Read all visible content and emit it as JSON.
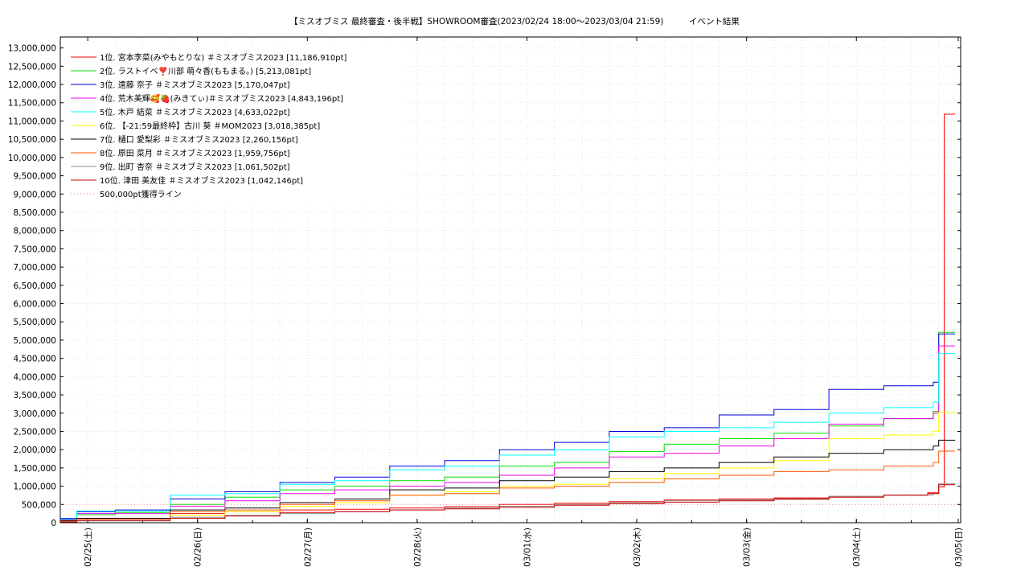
{
  "chart_data": {
    "type": "line",
    "title": "【ミスオブミス 最終審査・後半戦】SHOWROOM審査(2023/02/24 18:00～2023/03/04 21:59)　　　イベント結果",
    "xlabel": "",
    "ylabel": "",
    "ylim": [
      0,
      13300000
    ],
    "grid": true,
    "legend_position": "top-left",
    "x_ticks": [
      "02/25(土)",
      "02/26(日)",
      "02/27(月)",
      "02/28(火)",
      "03/01(水)",
      "03/02(木)",
      "03/03(金)",
      "03/04(土)",
      "03/05(日)"
    ],
    "y_ticks": [
      "0",
      "500,000",
      "1,000,000",
      "1,500,000",
      "2,000,000",
      "2,500,000",
      "3,000,000",
      "3,500,000",
      "4,000,000",
      "4,500,000",
      "5,000,000",
      "5,500,000",
      "6,000,000",
      "6,500,000",
      "7,000,000",
      "7,500,000",
      "8,000,000",
      "8,500,000",
      "9,000,000",
      "9,500,000",
      "10,000,000",
      "10,500,000",
      "11,000,000",
      "11,500,000",
      "12,000,000",
      "12,500,000",
      "13,000,000"
    ],
    "x_unit_note": "days since 02/24 18:00",
    "series": [
      {
        "name": "1位. 宮本李菜(みやもとりな) ＃ミスオブミス2023 [11,186,910pt]",
        "color": "#ff0000",
        "style": "solid",
        "points": [
          [
            0,
            0.06
          ],
          [
            0.15,
            0.12
          ],
          [
            1.0,
            0.25
          ],
          [
            1.5,
            0.3
          ],
          [
            2.0,
            0.35
          ],
          [
            2.5,
            0.37
          ],
          [
            3.0,
            0.4
          ],
          [
            3.5,
            0.44
          ],
          [
            4.0,
            0.5
          ],
          [
            4.5,
            0.53
          ],
          [
            5.0,
            0.58
          ],
          [
            5.5,
            0.62
          ],
          [
            6.0,
            0.65
          ],
          [
            6.5,
            0.68
          ],
          [
            7.0,
            0.72
          ],
          [
            7.5,
            0.76
          ],
          [
            7.9,
            0.82
          ],
          [
            8.0,
            0.98
          ],
          [
            8.05,
            11.18691
          ],
          [
            8.15,
            11.18691
          ]
        ]
      },
      {
        "name": "2位. ラストイベ❣️川部 萌々香(ももまる。) [5,213,081pt]",
        "color": "#00dd00",
        "style": "solid",
        "points": [
          [
            0,
            0.05
          ],
          [
            0.15,
            0.22
          ],
          [
            0.5,
            0.28
          ],
          [
            1.0,
            0.5
          ],
          [
            1.5,
            0.7
          ],
          [
            2.0,
            0.9
          ],
          [
            2.5,
            1.0
          ],
          [
            3.0,
            1.15
          ],
          [
            3.5,
            1.25
          ],
          [
            4.0,
            1.55
          ],
          [
            4.5,
            1.65
          ],
          [
            5.0,
            1.95
          ],
          [
            5.5,
            2.15
          ],
          [
            6.0,
            2.3
          ],
          [
            6.5,
            2.45
          ],
          [
            7.0,
            2.65
          ],
          [
            7.5,
            2.85
          ],
          [
            7.95,
            3.05
          ],
          [
            8.0,
            5.213081
          ],
          [
            8.15,
            5.213081
          ]
        ]
      },
      {
        "name": "3位. 遠藤 奈子 ＃ミスオブミス2023 [5,170,047pt]",
        "color": "#0000dd",
        "style": "solid",
        "points": [
          [
            0,
            0.12
          ],
          [
            0.15,
            0.3
          ],
          [
            0.5,
            0.35
          ],
          [
            1.0,
            0.65
          ],
          [
            1.5,
            0.85
          ],
          [
            2.0,
            1.1
          ],
          [
            2.5,
            1.25
          ],
          [
            3.0,
            1.55
          ],
          [
            3.5,
            1.7
          ],
          [
            4.0,
            2.0
          ],
          [
            4.5,
            2.2
          ],
          [
            5.0,
            2.5
          ],
          [
            5.5,
            2.6
          ],
          [
            6.0,
            2.95
          ],
          [
            6.5,
            3.1
          ],
          [
            7.0,
            3.65
          ],
          [
            7.5,
            3.75
          ],
          [
            7.95,
            3.85
          ],
          [
            8.0,
            5.170047
          ],
          [
            8.15,
            5.170047
          ]
        ]
      },
      {
        "name": "4位. 荒木美輝🥰🍓(みきてぃ)＃ミスオブミス2023 [4,843,196pt]",
        "color": "#ee00ee",
        "style": "solid",
        "points": [
          [
            0,
            0.08
          ],
          [
            0.15,
            0.25
          ],
          [
            1.0,
            0.45
          ],
          [
            1.5,
            0.6
          ],
          [
            2.0,
            0.8
          ],
          [
            2.5,
            0.9
          ],
          [
            3.0,
            1.0
          ],
          [
            3.5,
            1.1
          ],
          [
            4.0,
            1.3
          ],
          [
            4.5,
            1.5
          ],
          [
            5.0,
            1.8
          ],
          [
            5.5,
            1.9
          ],
          [
            6.0,
            2.1
          ],
          [
            6.5,
            2.3
          ],
          [
            7.0,
            2.7
          ],
          [
            7.5,
            2.85
          ],
          [
            7.95,
            3.0
          ],
          [
            8.0,
            4.843196
          ],
          [
            8.15,
            4.843196
          ]
        ]
      },
      {
        "name": "5位. 木戸 結菜 ＃ミスオブミス2023 [4,633,022pt]",
        "color": "#00ffff",
        "style": "solid",
        "points": [
          [
            0,
            0.1
          ],
          [
            0.15,
            0.32
          ],
          [
            1.0,
            0.75
          ],
          [
            1.5,
            0.8
          ],
          [
            2.0,
            1.05
          ],
          [
            2.5,
            1.15
          ],
          [
            3.0,
            1.45
          ],
          [
            3.5,
            1.55
          ],
          [
            4.0,
            1.85
          ],
          [
            4.5,
            2.0
          ],
          [
            5.0,
            2.35
          ],
          [
            5.5,
            2.5
          ],
          [
            6.0,
            2.6
          ],
          [
            6.5,
            2.75
          ],
          [
            7.0,
            3.0
          ],
          [
            7.5,
            3.15
          ],
          [
            7.95,
            3.3
          ],
          [
            8.0,
            4.633022
          ],
          [
            8.15,
            4.633022
          ]
        ]
      },
      {
        "name": "6位. 【-21:59最終枠】古川 葵 ＃MOM2023 [3,018,385pt]",
        "color": "#ffff00",
        "style": "solid",
        "points": [
          [
            0,
            0.05
          ],
          [
            0.15,
            0.1
          ],
          [
            1.0,
            0.2
          ],
          [
            1.5,
            0.3
          ],
          [
            2.0,
            0.45
          ],
          [
            2.5,
            0.55
          ],
          [
            3.0,
            0.75
          ],
          [
            3.5,
            0.85
          ],
          [
            4.0,
            1.0
          ],
          [
            4.5,
            1.05
          ],
          [
            5.0,
            1.2
          ],
          [
            5.5,
            1.35
          ],
          [
            6.0,
            1.5
          ],
          [
            6.5,
            1.7
          ],
          [
            7.0,
            2.3
          ],
          [
            7.5,
            2.4
          ],
          [
            7.95,
            2.5
          ],
          [
            8.0,
            3.018385
          ],
          [
            8.15,
            3.018385
          ]
        ]
      },
      {
        "name": "7位. 樋口 愛梨彩 ＃ミスオブミス2023 [2,260,156pt]",
        "color": "#000000",
        "style": "solid",
        "points": [
          [
            0,
            0.06
          ],
          [
            0.15,
            0.12
          ],
          [
            1.0,
            0.35
          ],
          [
            1.5,
            0.4
          ],
          [
            2.0,
            0.55
          ],
          [
            2.5,
            0.65
          ],
          [
            3.0,
            0.9
          ],
          [
            3.5,
            0.95
          ],
          [
            4.0,
            1.15
          ],
          [
            4.5,
            1.25
          ],
          [
            5.0,
            1.4
          ],
          [
            5.5,
            1.5
          ],
          [
            6.0,
            1.65
          ],
          [
            6.5,
            1.8
          ],
          [
            7.0,
            1.9
          ],
          [
            7.5,
            2.0
          ],
          [
            7.95,
            2.1
          ],
          [
            8.0,
            2.260156
          ],
          [
            8.15,
            2.260156
          ]
        ]
      },
      {
        "name": "8位. 原田 菜月 ＃ミスオブミス2023 [1,959,756pt]",
        "color": "#ff5500",
        "style": "solid",
        "points": [
          [
            0,
            0.04
          ],
          [
            0.15,
            0.1
          ],
          [
            1.0,
            0.3
          ],
          [
            1.5,
            0.35
          ],
          [
            2.0,
            0.5
          ],
          [
            2.5,
            0.6
          ],
          [
            3.0,
            0.75
          ],
          [
            3.5,
            0.8
          ],
          [
            4.0,
            0.95
          ],
          [
            4.5,
            1.0
          ],
          [
            5.0,
            1.1
          ],
          [
            5.5,
            1.2
          ],
          [
            6.0,
            1.3
          ],
          [
            6.5,
            1.4
          ],
          [
            7.0,
            1.45
          ],
          [
            7.5,
            1.55
          ],
          [
            7.95,
            1.65
          ],
          [
            8.0,
            1.959756
          ],
          [
            8.15,
            1.959756
          ]
        ]
      },
      {
        "name": "9位. 出町 杏奈 ＃ミスオブミス2023 [1,061,502pt]",
        "color": "#888888",
        "style": "solid",
        "points": [
          [
            0,
            0.03
          ],
          [
            0.15,
            0.05
          ],
          [
            1.0,
            0.15
          ],
          [
            1.5,
            0.2
          ],
          [
            2.0,
            0.25
          ],
          [
            2.5,
            0.3
          ],
          [
            3.0,
            0.35
          ],
          [
            3.5,
            0.4
          ],
          [
            4.0,
            0.45
          ],
          [
            4.5,
            0.5
          ],
          [
            5.0,
            0.55
          ],
          [
            5.5,
            0.6
          ],
          [
            6.0,
            0.62
          ],
          [
            6.5,
            0.66
          ],
          [
            7.0,
            0.72
          ],
          [
            7.5,
            0.76
          ],
          [
            7.95,
            0.8
          ],
          [
            8.0,
            1.061502
          ],
          [
            8.15,
            1.061502
          ]
        ]
      },
      {
        "name": "10位. 津田 美友佳 ＃ミスオブミス2023 [1,042,146pt]",
        "color": "#cc0000",
        "style": "solid",
        "points": [
          [
            0,
            0.02
          ],
          [
            0.15,
            0.06
          ],
          [
            1.0,
            0.12
          ],
          [
            1.5,
            0.18
          ],
          [
            2.0,
            0.28
          ],
          [
            2.5,
            0.3
          ],
          [
            3.0,
            0.35
          ],
          [
            3.5,
            0.38
          ],
          [
            4.0,
            0.42
          ],
          [
            4.5,
            0.48
          ],
          [
            5.0,
            0.52
          ],
          [
            5.5,
            0.56
          ],
          [
            6.0,
            0.6
          ],
          [
            6.5,
            0.64
          ],
          [
            7.0,
            0.7
          ],
          [
            7.5,
            0.75
          ],
          [
            7.9,
            0.8
          ],
          [
            8.0,
            1.042146
          ],
          [
            8.15,
            1.042146
          ]
        ]
      },
      {
        "name": "500,000pt獲得ライン",
        "color": "#ee8888",
        "style": "dotted",
        "points": [
          [
            0,
            0.5
          ],
          [
            8.15,
            0.5
          ]
        ]
      }
    ]
  }
}
